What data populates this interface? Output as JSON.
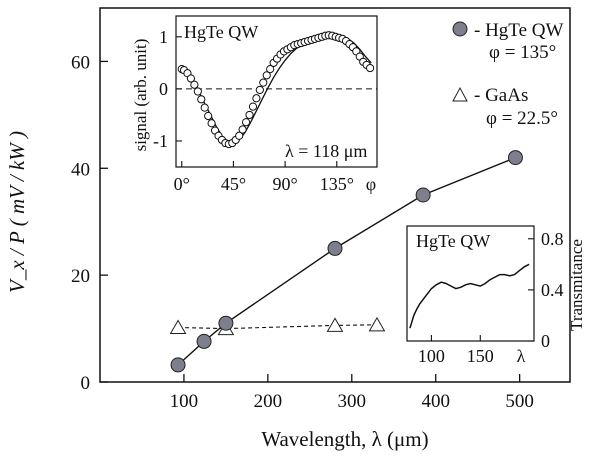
{
  "chart_data": [
    {
      "type": "scatter",
      "xlabel": "Wavelength, λ  (μm)",
      "ylabel": "V_x / P  ( mV / kW )",
      "xlim": [
        0,
        560
      ],
      "ylim": [
        0,
        70
      ],
      "xticks": [
        100,
        200,
        300,
        400,
        500
      ],
      "yticks": [
        0,
        20,
        40,
        60
      ],
      "grid": false,
      "legend_position": "top-right",
      "series": [
        {
          "name": "- HgTe QW",
          "sublabel": "φ = 135°",
          "marker": "circle",
          "line": "solid",
          "x": [
            93,
            124,
            150,
            280,
            385,
            495
          ],
          "y": [
            3.2,
            7.6,
            11,
            25,
            35,
            42
          ]
        },
        {
          "name": "- GaAs",
          "sublabel": "φ = 22.5°",
          "marker": "triangle",
          "line": "dashed",
          "x": [
            93,
            150,
            280,
            330
          ],
          "y": [
            10.2,
            10.0,
            10.6,
            10.7
          ]
        }
      ]
    },
    {
      "type": "scatter",
      "title": "HgTe QW",
      "annotation": "λ = 118 μm",
      "xlabel": "φ",
      "ylabel": "signal (arb. unit)",
      "xlim": [
        -5,
        170
      ],
      "ylim": [
        -1.5,
        1.4
      ],
      "xticks": [
        0,
        45,
        90,
        135
      ],
      "xticklabels": [
        "0°",
        "45°",
        "90°",
        "135°"
      ],
      "yticks": [
        -1,
        0,
        1
      ],
      "reference_line_y": 0,
      "series": [
        {
          "marker": "open-circle",
          "x": [
            0,
            2,
            5,
            8,
            11,
            14,
            17,
            20,
            23,
            26,
            29,
            32,
            35,
            38,
            41,
            44,
            47,
            50,
            53,
            56,
            59,
            62,
            65,
            68,
            71,
            74,
            77,
            80,
            83,
            86,
            89,
            92,
            95,
            98,
            101,
            104,
            107,
            110,
            113,
            116,
            119,
            122,
            125,
            128,
            131,
            134,
            137,
            140,
            143,
            146,
            149,
            152,
            155,
            158,
            161,
            164
          ],
          "y": [
            0.38,
            0.36,
            0.3,
            0.2,
            0.08,
            -0.05,
            -0.2,
            -0.36,
            -0.52,
            -0.66,
            -0.8,
            -0.9,
            -0.98,
            -1.04,
            -1.06,
            -1.04,
            -0.98,
            -0.9,
            -0.78,
            -0.64,
            -0.5,
            -0.34,
            -0.18,
            -0.02,
            0.12,
            0.26,
            0.38,
            0.5,
            0.58,
            0.66,
            0.72,
            0.76,
            0.8,
            0.84,
            0.86,
            0.88,
            0.9,
            0.92,
            0.94,
            0.96,
            0.98,
            1.0,
            1.02,
            1.03,
            1.02,
            1.0,
            0.98,
            0.96,
            0.92,
            0.86,
            0.8,
            0.72,
            0.62,
            0.52,
            0.46,
            0.4
          ]
        },
        {
          "line": "solid",
          "x": [
            0,
            5,
            10,
            15,
            20,
            25,
            30,
            35,
            40,
            45,
            50,
            55,
            60,
            65,
            70,
            75,
            80,
            85,
            90,
            95,
            100,
            105,
            110,
            115,
            120,
            125,
            130,
            135,
            140,
            145,
            150,
            155,
            160,
            165
          ],
          "y": [
            0.34,
            0.26,
            0.12,
            -0.06,
            -0.28,
            -0.5,
            -0.72,
            -0.9,
            -1.02,
            -1.05,
            -0.98,
            -0.84,
            -0.64,
            -0.42,
            -0.2,
            0.02,
            0.22,
            0.4,
            0.55,
            0.68,
            0.78,
            0.86,
            0.92,
            0.96,
            0.99,
            1.01,
            1.02,
            1.02,
            1.0,
            0.96,
            0.88,
            0.76,
            0.62,
            0.5
          ]
        }
      ]
    },
    {
      "type": "line",
      "title": "HgTe QW",
      "xlabel": "λ",
      "ylabel": "Transmitance",
      "xlim": [
        75,
        205
      ],
      "ylim": [
        0,
        0.9
      ],
      "xticks": [
        100,
        150
      ],
      "yticks": [
        0,
        0.4,
        0.8
      ],
      "series": [
        {
          "line": "solid",
          "x": [
            78,
            80,
            82,
            85,
            88,
            92,
            96,
            100,
            105,
            110,
            115,
            120,
            125,
            130,
            135,
            140,
            145,
            150,
            155,
            160,
            165,
            170,
            175,
            180,
            185,
            190,
            195,
            200
          ],
          "y": [
            0.1,
            0.15,
            0.2,
            0.25,
            0.29,
            0.33,
            0.37,
            0.41,
            0.44,
            0.46,
            0.45,
            0.43,
            0.41,
            0.42,
            0.44,
            0.45,
            0.44,
            0.43,
            0.45,
            0.48,
            0.5,
            0.52,
            0.52,
            0.51,
            0.52,
            0.55,
            0.58,
            0.6
          ]
        }
      ]
    }
  ]
}
